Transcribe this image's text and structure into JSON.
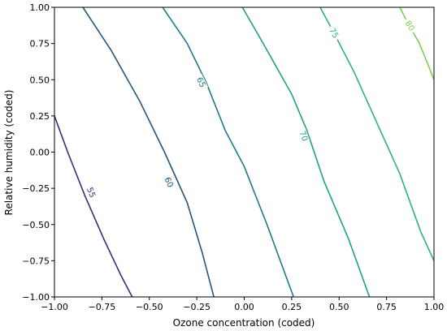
{
  "chart_data": {
    "type": "contour",
    "title": "",
    "xlabel": "Ozone concentration (coded)",
    "ylabel": "Relative humidity (coded)",
    "xlim": [
      -1.0,
      1.0
    ],
    "ylim": [
      -1.0,
      1.0
    ],
    "x_ticks": [
      "−1.00",
      "−0.75",
      "−0.50",
      "−0.25",
      "0.00",
      "0.25",
      "0.50",
      "0.75",
      "1.00"
    ],
    "y_ticks": [
      "−1.00",
      "−0.75",
      "−0.50",
      "−0.25",
      "0.00",
      "0.25",
      "0.50",
      "0.75",
      "1.00"
    ],
    "x_tick_values": [
      -1.0,
      -0.75,
      -0.5,
      -0.25,
      0.0,
      0.25,
      0.5,
      0.75,
      1.0
    ],
    "y_tick_values": [
      -1.0,
      -0.75,
      -0.5,
      -0.25,
      0.0,
      0.25,
      0.5,
      0.75,
      1.0
    ],
    "grid": false,
    "contours": [
      {
        "level": "55",
        "color": "#3e2a7a",
        "points": [
          [
            -1.0,
            0.25
          ],
          [
            -0.93,
            0.0
          ],
          [
            -0.84,
            -0.3
          ],
          [
            -0.74,
            -0.6
          ],
          [
            -0.65,
            -0.85
          ],
          [
            -0.59,
            -1.0
          ]
        ],
        "label_at": [
          -0.81,
          -0.28
        ]
      },
      {
        "level": "60",
        "color": "#23577d",
        "points": [
          [
            -0.85,
            1.0
          ],
          [
            -0.7,
            0.7
          ],
          [
            -0.55,
            0.35
          ],
          [
            -0.42,
            0.0
          ],
          [
            -0.3,
            -0.35
          ],
          [
            -0.22,
            -0.7
          ],
          [
            -0.16,
            -1.0
          ]
        ],
        "label_at": [
          -0.4,
          -0.21
        ]
      },
      {
        "level": "65",
        "color": "#1f7a8c",
        "points": [
          [
            -0.43,
            1.0
          ],
          [
            -0.3,
            0.75
          ],
          [
            -0.2,
            0.48
          ],
          [
            -0.1,
            0.15
          ],
          [
            0.0,
            -0.1
          ],
          [
            0.12,
            -0.5
          ],
          [
            0.26,
            -1.0
          ]
        ],
        "label_at": [
          -0.23,
          0.48
        ]
      },
      {
        "level": "70",
        "color": "#1f9f89",
        "points": [
          [
            -0.01,
            1.0
          ],
          [
            0.1,
            0.75
          ],
          [
            0.25,
            0.4
          ],
          [
            0.33,
            0.15
          ],
          [
            0.42,
            -0.2
          ],
          [
            0.55,
            -0.6
          ],
          [
            0.66,
            -1.0
          ]
        ],
        "label_at": [
          0.31,
          0.11
        ]
      },
      {
        "level": "75",
        "color": "#2db27d",
        "points": [
          [
            0.4,
            1.0
          ],
          [
            0.47,
            0.83
          ],
          [
            0.58,
            0.55
          ],
          [
            0.7,
            0.2
          ],
          [
            0.82,
            -0.15
          ],
          [
            0.93,
            -0.55
          ],
          [
            1.0,
            -0.75
          ]
        ],
        "label_at": [
          0.47,
          0.82
        ]
      },
      {
        "level": "80",
        "color": "#7ad151",
        "points": [
          [
            0.82,
            1.0
          ],
          [
            0.87,
            0.87
          ],
          [
            0.92,
            0.76
          ],
          [
            0.97,
            0.6
          ],
          [
            1.0,
            0.5
          ]
        ],
        "label_at": [
          0.87,
          0.87
        ]
      }
    ]
  }
}
